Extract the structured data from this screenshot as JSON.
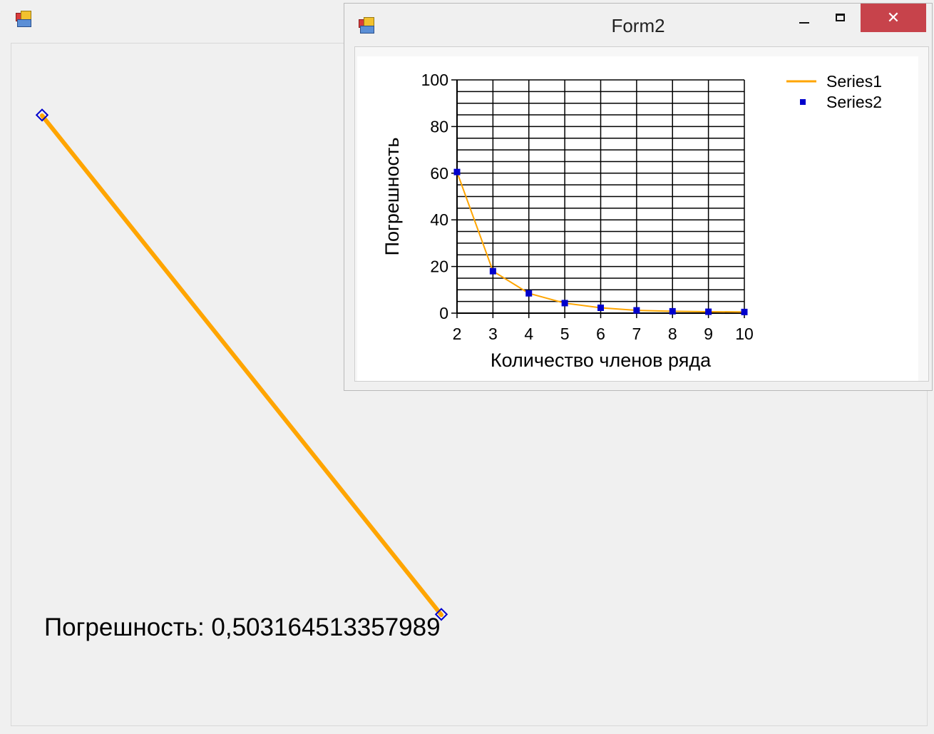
{
  "main_window": {
    "icon": "winforms-app-icon",
    "error_label": "Погрешность: 0,503164513357989",
    "big_series": {
      "color": "#ffa500",
      "marker_color": "#0000cc"
    }
  },
  "form2": {
    "title": "Form2",
    "icon": "winforms-app-icon",
    "controls": {
      "minimize": "minimize-icon",
      "maximize": "maximize-icon",
      "close": "✕"
    }
  },
  "chart_data": {
    "type": "line",
    "x": [
      2,
      3,
      4,
      5,
      6,
      7,
      8,
      9,
      10
    ],
    "series": [
      {
        "name": "Series1",
        "kind": "line",
        "color": "#ffa500",
        "values": [
          60.5,
          18,
          8.5,
          4.3,
          2.3,
          1.2,
          0.8,
          0.6,
          0.5
        ]
      },
      {
        "name": "Series2",
        "kind": "point",
        "color": "#0000cc",
        "values": [
          60.5,
          18,
          8.5,
          4.3,
          2.3,
          1.2,
          0.8,
          0.6,
          0.5
        ]
      }
    ],
    "xlabel": "Количество членов ряда",
    "ylabel": "Погрешность",
    "xlim": [
      2,
      10
    ],
    "ylim": [
      0,
      100
    ],
    "yticks": [
      0,
      20,
      40,
      60,
      80,
      100
    ],
    "xticks": [
      2,
      3,
      4,
      5,
      6,
      7,
      8,
      9,
      10
    ],
    "grid": true,
    "legend": "top-right"
  }
}
